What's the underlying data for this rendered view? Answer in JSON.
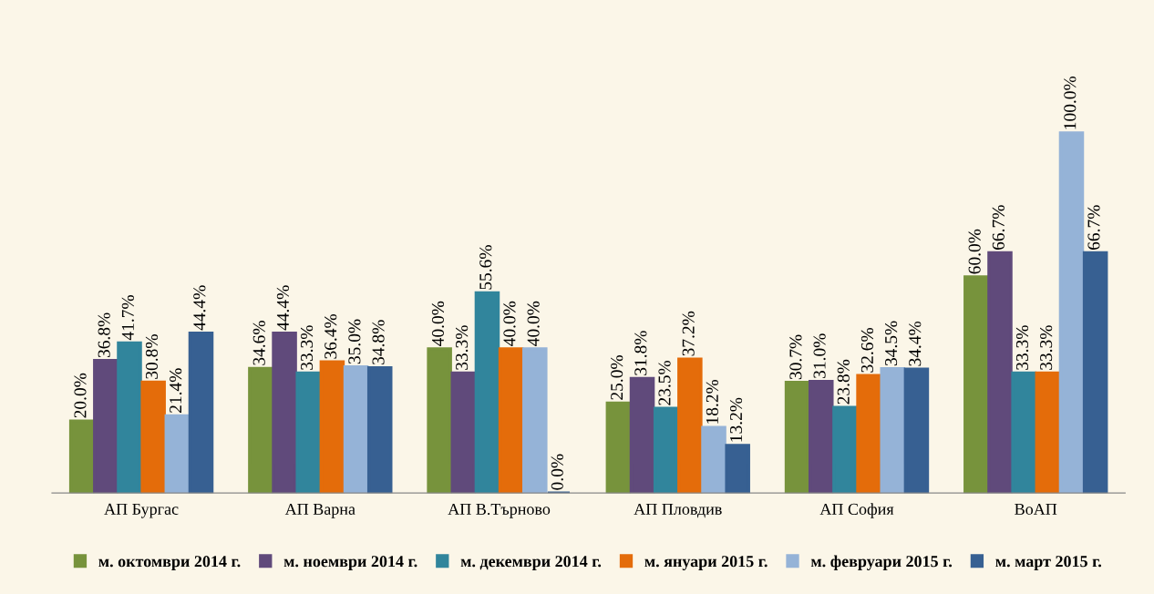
{
  "chart_data": {
    "type": "bar",
    "categories": [
      "АП Бургас",
      "АП Варна",
      "АП В.Търново",
      "АП Пловдив",
      "АП София",
      "ВоАП"
    ],
    "series": [
      {
        "name": "м. октомври 2014 г.",
        "color": "#77933c",
        "values": [
          20.0,
          34.6,
          40.0,
          25.0,
          30.7,
          60.0
        ],
        "value_labels": [
          "20.0%",
          "34.6%",
          "40.0%",
          "25.0%",
          "30.7%",
          "60.0%"
        ]
      },
      {
        "name": "м. ноември 2014 г.",
        "color": "#604a7b",
        "values": [
          36.8,
          44.4,
          33.3,
          31.8,
          31.0,
          66.7
        ],
        "value_labels": [
          "36.8%",
          "44.4%",
          "33.3%",
          "31.8%",
          "31.0%",
          "66.7%"
        ]
      },
      {
        "name": "м. декември 2014 г.",
        "color": "#31859c",
        "values": [
          41.7,
          33.3,
          55.6,
          23.5,
          23.8,
          33.3
        ],
        "value_labels": [
          "41.7%",
          "33.3%",
          "55.6%",
          "23.5%",
          "23.8%",
          "33.3%"
        ]
      },
      {
        "name": "м. януари 2015 г.",
        "color": "#e46c0a",
        "values": [
          30.8,
          36.4,
          40.0,
          37.2,
          32.6,
          33.3
        ],
        "value_labels": [
          "30.8%",
          "36.4%",
          "40.0%",
          "37.2%",
          "32.6%",
          "33.3%"
        ]
      },
      {
        "name": "м. февруари 2015 г.",
        "color": "#95b3d7",
        "values": [
          21.4,
          35.0,
          40.0,
          18.2,
          34.5,
          100.0
        ],
        "value_labels": [
          "21.4%",
          "35.0%",
          "40.0%",
          "18.2%",
          "34.5%",
          "100.0%"
        ]
      },
      {
        "name": "м. март 2015 г.",
        "color": "#376092",
        "values": [
          44.4,
          34.8,
          0.0,
          13.2,
          34.4,
          66.7
        ],
        "value_labels": [
          "44.4%",
          "34.8%",
          "0.0%",
          "13.2%",
          "34.4%",
          "66.7%"
        ]
      }
    ],
    "legend": "bottom",
    "grid": false
  }
}
